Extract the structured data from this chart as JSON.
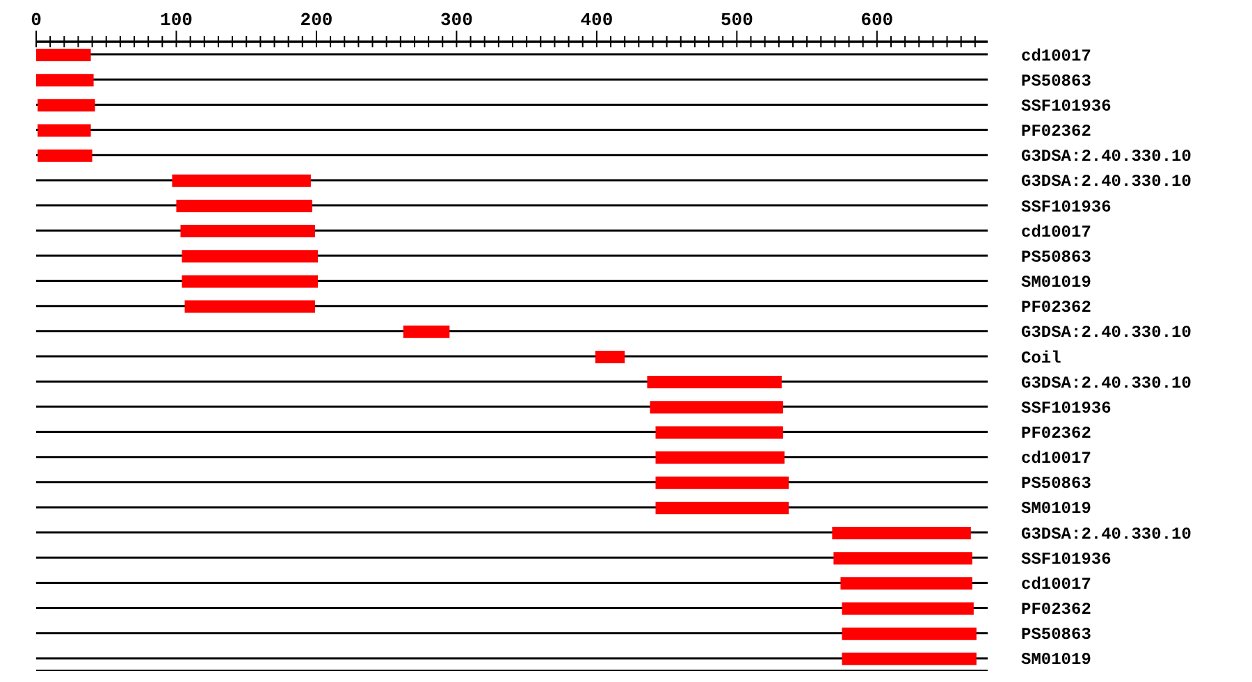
{
  "chart_data": {
    "type": "bar",
    "orientation": "horizontal",
    "grid": "y",
    "legend": false,
    "categories": [
      "cd10017",
      "PS50863",
      "SSF101936",
      "PF02362",
      "G3DSA:2.40.330.10",
      "G3DSA:2.40.330.10",
      "SSF101936",
      "cd10017",
      "PS50863",
      "SM01019",
      "PF02362",
      "G3DSA:2.40.330.10",
      "Coil",
      "G3DSA:2.40.330.10",
      "SSF101936",
      "PF02362",
      "cd10017",
      "PS50863",
      "SM01019",
      "G3DSA:2.40.330.10",
      "SSF101936",
      "cd10017",
      "PF02362",
      "PS50863",
      "SM01019"
    ],
    "series": [
      {
        "color": "#ff0000",
        "base": [
          0,
          0,
          1,
          1,
          1,
          97,
          100,
          103,
          104,
          104,
          106,
          262,
          399,
          436,
          438,
          442,
          442,
          442,
          442,
          568,
          569,
          574,
          575,
          575,
          575
        ],
        "values": [
          39,
          41,
          41,
          38,
          39,
          99,
          97,
          96,
          97,
          97,
          93,
          33,
          21,
          96,
          95,
          91,
          92,
          95,
          95,
          99,
          99,
          94,
          94,
          96,
          96
        ]
      }
    ],
    "xlim": [
      0,
      679
    ],
    "xticks": [
      0,
      {
        "value": 10,
        "label": null
      },
      {
        "value": 20,
        "label": null
      },
      {
        "value": 30,
        "label": null
      },
      {
        "value": 40,
        "label": null
      },
      {
        "value": 50,
        "label": null
      },
      {
        "value": 60,
        "label": null
      },
      {
        "value": 70,
        "label": null
      },
      {
        "value": 80,
        "label": null
      },
      {
        "value": 90,
        "label": null
      },
      100,
      {
        "value": 110,
        "label": null
      },
      {
        "value": 120,
        "label": null
      },
      {
        "value": 130,
        "label": null
      },
      {
        "value": 140,
        "label": null
      },
      {
        "value": 150,
        "label": null
      },
      {
        "value": 160,
        "label": null
      },
      {
        "value": 170,
        "label": null
      },
      {
        "value": 180,
        "label": null
      },
      {
        "value": 190,
        "label": null
      },
      200,
      {
        "value": 210,
        "label": null
      },
      {
        "value": 220,
        "label": null
      },
      {
        "value": 230,
        "label": null
      },
      {
        "value": 240,
        "label": null
      },
      {
        "value": 250,
        "label": null
      },
      {
        "value": 260,
        "label": null
      },
      {
        "value": 270,
        "label": null
      },
      {
        "value": 280,
        "label": null
      },
      {
        "value": 290,
        "label": null
      },
      300,
      {
        "value": 310,
        "label": null
      },
      {
        "value": 320,
        "label": null
      },
      {
        "value": 330,
        "label": null
      },
      {
        "value": 340,
        "label": null
      },
      {
        "value": 350,
        "label": null
      },
      {
        "value": 360,
        "label": null
      },
      {
        "value": 370,
        "label": null
      },
      {
        "value": 380,
        "label": null
      },
      {
        "value": 390,
        "label": null
      },
      400,
      {
        "value": 410,
        "label": null
      },
      {
        "value": 420,
        "label": null
      },
      {
        "value": 430,
        "label": null
      },
      {
        "value": 440,
        "label": null
      },
      {
        "value": 450,
        "label": null
      },
      {
        "value": 460,
        "label": null
      },
      {
        "value": 470,
        "label": null
      },
      {
        "value": 480,
        "label": null
      },
      {
        "value": 490,
        "label": null
      },
      500,
      {
        "value": 510,
        "label": null
      },
      {
        "value": 520,
        "label": null
      },
      {
        "value": 530,
        "label": null
      },
      {
        "value": 540,
        "label": null
      },
      {
        "value": 550,
        "label": null
      },
      {
        "value": 560,
        "label": null
      },
      {
        "value": 570,
        "label": null
      },
      {
        "value": 580,
        "label": null
      },
      {
        "value": 590,
        "label": null
      },
      600,
      {
        "value": 610,
        "label": null
      },
      {
        "value": 620,
        "label": null
      },
      {
        "value": 630,
        "label": null
      },
      {
        "value": 640,
        "label": null
      },
      {
        "value": 650,
        "label": null
      },
      {
        "value": 660,
        "label": null
      },
      {
        "value": 670,
        "label": null
      }
    ]
  }
}
